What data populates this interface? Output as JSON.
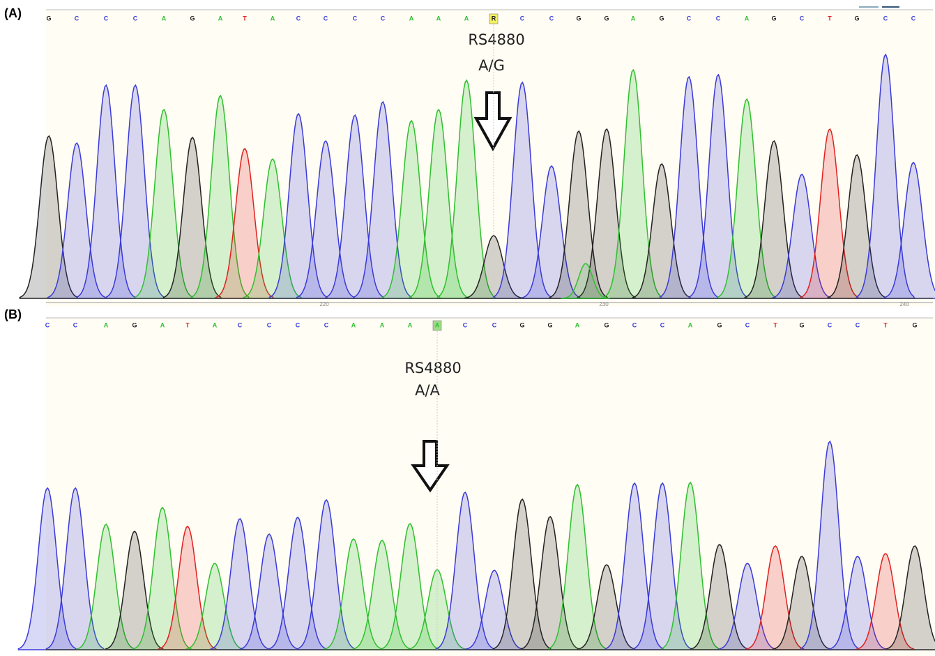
{
  "base_colors": {
    "A": "#2fbf2f",
    "C": "#3a3ad8",
    "G": "#222222",
    "T": "#e02020",
    "R": "#222222"
  },
  "panels": [
    {
      "label": "(A)",
      "sequence": [
        "G",
        "C",
        "C",
        "C",
        "A",
        "G",
        "A",
        "T",
        "A",
        "C",
        "C",
        "C",
        "C",
        "A",
        "A",
        "A",
        "R",
        "C",
        "C",
        "G",
        "G",
        "A",
        "G",
        "C",
        "C",
        "A",
        "G",
        "C",
        "T",
        "G",
        "C",
        "C"
      ],
      "axis_labels": [
        "220",
        "230",
        "240"
      ],
      "annotation": {
        "snp": "RS4880",
        "genotype": "A/G"
      }
    },
    {
      "label": "(B)",
      "sequence": [
        "C",
        "C",
        "A",
        "G",
        "A",
        "T",
        "A",
        "C",
        "C",
        "C",
        "C",
        "A",
        "A",
        "A",
        "A",
        "C",
        "C",
        "G",
        "G",
        "A",
        "G",
        "C",
        "C",
        "A",
        "G",
        "C",
        "T",
        "G",
        "C",
        "C",
        "T",
        "G"
      ],
      "annotation": {
        "snp": "RS4880",
        "genotype": "A/A"
      }
    }
  ]
}
